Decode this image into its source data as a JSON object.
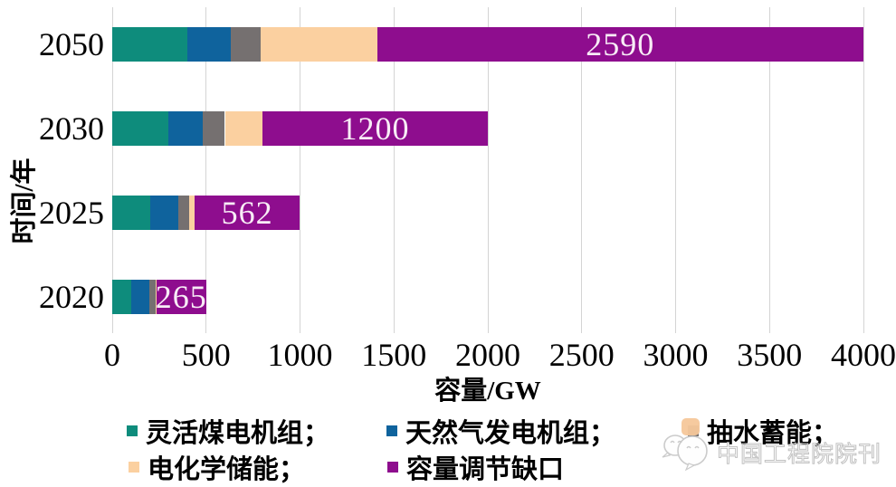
{
  "chart_data": {
    "type": "bar",
    "subtype": "horizontal-stacked",
    "title": "",
    "xlabel": "容量/GW",
    "ylabel": "时间/年",
    "xlim": [
      0,
      4000
    ],
    "x_ticks": [
      0,
      500,
      1000,
      1500,
      2000,
      2500,
      3000,
      3500,
      4000
    ],
    "grid": true,
    "legend_position": "bottom",
    "categories": [
      "2050",
      "2030",
      "2025",
      "2020"
    ],
    "series": [
      {
        "name": "灵活煤电机组",
        "color": "#0E8C7C",
        "values": [
          400,
          300,
          200,
          100
        ]
      },
      {
        "name": "天然气发电机组",
        "color": "#0F639D",
        "values": [
          230,
          180,
          150,
          98
        ]
      },
      {
        "name": "抽水蓄能",
        "color": "#757070",
        "values": [
          160,
          120,
          62,
          31
        ]
      },
      {
        "name": "电化学储能",
        "color": "#FBD0A0",
        "values": [
          620,
          200,
          26,
          6
        ]
      },
      {
        "name": "容量调节缺口",
        "color": "#8E0D8E",
        "values": [
          2590,
          1200,
          562,
          265
        ],
        "data_labels": [
          "2590",
          "1200",
          "562",
          "265"
        ]
      }
    ],
    "totals": [
      4000,
      2000,
      1000,
      500
    ]
  },
  "legend": {
    "items": [
      {
        "label": "灵活煤电机组；",
        "color": "#0E8C7C"
      },
      {
        "label": "天然气发电机组；",
        "color": "#0F639D"
      },
      {
        "label": "抽水蓄能；",
        "color": "#757070"
      },
      {
        "label": "电化学储能；",
        "color": "#FBD0A0"
      },
      {
        "label": "容量调节缺口",
        "color": "#8E0D8E"
      }
    ]
  },
  "watermark": {
    "text": "中国工程院院刊"
  },
  "colors": {
    "grid": "#D4D4D4",
    "data_label": "#F8ECF6",
    "text": "#000000",
    "watermark_outline": "#C2C2C2",
    "watermark_icon": "#F5C79A"
  }
}
